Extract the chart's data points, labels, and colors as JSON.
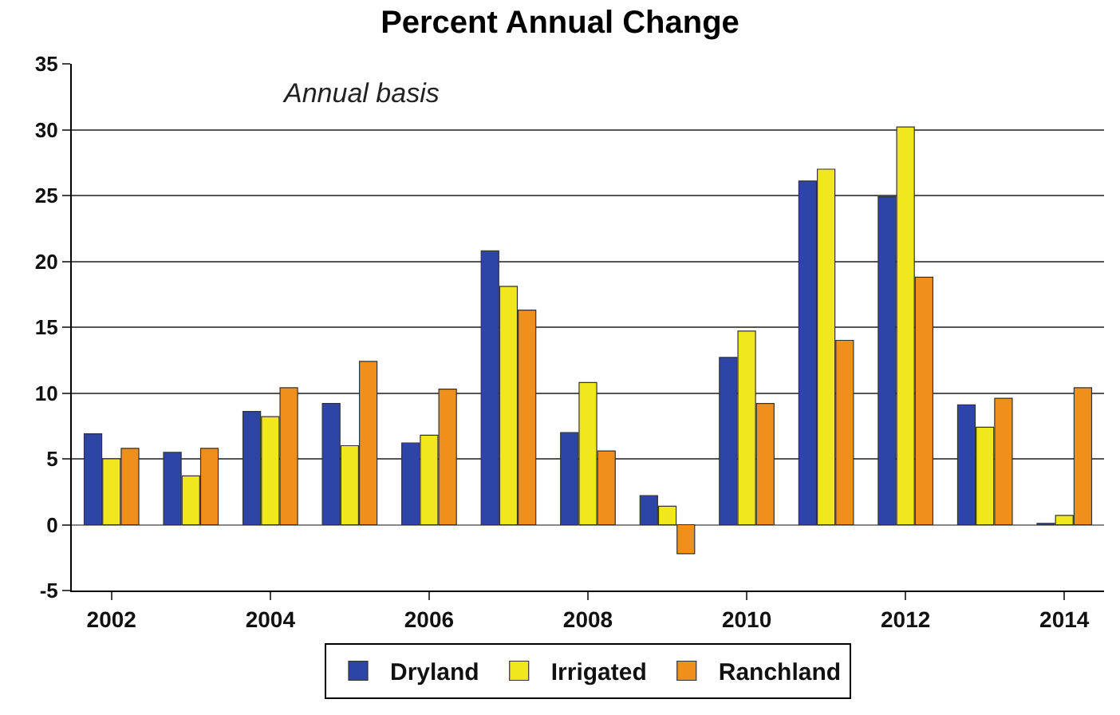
{
  "chart_data": {
    "type": "bar",
    "title": "Percent Annual Change",
    "annotations": [
      "Annual basis"
    ],
    "categories": [
      "2002",
      null,
      "2004",
      null,
      "2006",
      null,
      "2008",
      null,
      "2010",
      null,
      "2012",
      null,
      "2014"
    ],
    "series": [
      {
        "name": "Dryland",
        "color": "#2e45a8",
        "values": [
          6.9,
          5.5,
          8.6,
          9.2,
          6.2,
          20.8,
          7.0,
          2.2,
          12.7,
          26.1,
          24.9,
          9.1,
          0.1
        ]
      },
      {
        "name": "Irrigated",
        "color": "#f0e81c",
        "values": [
          5.0,
          3.7,
          8.2,
          6.0,
          6.8,
          18.1,
          10.8,
          1.4,
          14.7,
          27.0,
          30.2,
          7.4,
          0.7
        ]
      },
      {
        "name": "Ranchland",
        "color": "#f0901c",
        "values": [
          5.8,
          5.8,
          10.4,
          12.4,
          10.3,
          16.3,
          5.6,
          -2.2,
          9.2,
          14.0,
          18.8,
          9.6,
          10.4
        ]
      }
    ],
    "ylim": [
      -5,
      35
    ],
    "yticks": [
      -5,
      0,
      5,
      10,
      15,
      20,
      25,
      30,
      35
    ],
    "grid": "y",
    "legend": "bottom"
  }
}
